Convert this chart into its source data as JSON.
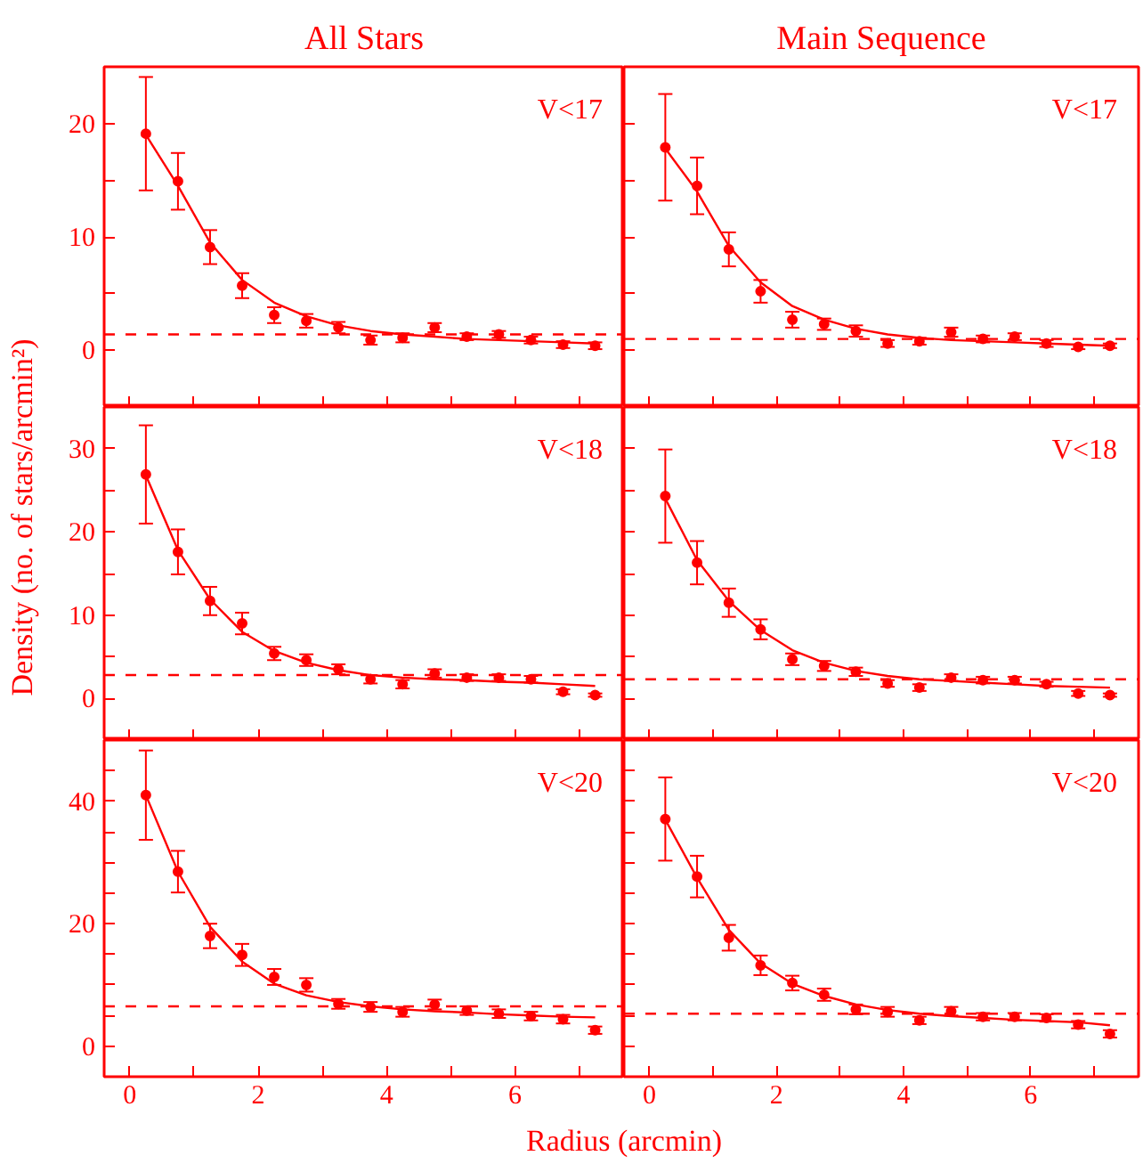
{
  "chart_data": [
    {
      "type": "scatter",
      "title": "All Stars",
      "annotations": [
        "V<17"
      ],
      "xlim": [
        -0.4,
        7.7
      ],
      "ylim": [
        -5,
        25
      ],
      "xticks": [
        0,
        {
          "value": 1,
          "label": null
        },
        2,
        {
          "value": 3,
          "label": null
        },
        4,
        {
          "value": 5,
          "label": null
        },
        6,
        {
          "value": 7,
          "label": null
        }
      ],
      "yticks": [
        0,
        {
          "value": 5,
          "label": null
        },
        10,
        {
          "value": 15,
          "label": null
        },
        20
      ],
      "tick_labels": "y",
      "grid": false,
      "x": [
        0.25,
        0.75,
        1.25,
        1.75,
        2.25,
        2.75,
        3.25,
        3.75,
        4.25,
        4.75,
        5.25,
        5.75,
        6.25,
        6.75,
        7.25
      ],
      "ref_lines": [
        {
          "axis": "y",
          "value": 1.4,
          "color": "#ff0000",
          "line_style": "dashed"
        }
      ],
      "series": [
        {
          "marker": "circle",
          "color": "#ff0000",
          "values": [
            19.1,
            14.9,
            9.1,
            5.7,
            3.1,
            2.6,
            2.0,
            0.9,
            1.1,
            2.0,
            1.2,
            1.4,
            0.9,
            0.5,
            0.4
          ],
          "errors": [
            5,
            2.5,
            1.5,
            1.1,
            0.7,
            0.6,
            0.5,
            0.4,
            0.4,
            0.4,
            0.3,
            0.3,
            0.3,
            0.3,
            0.3
          ]
        },
        {
          "type": "line",
          "marker": "none",
          "color": "#ff0000",
          "values": [
            19.0,
            14.5,
            9.5,
            6.2,
            4.2,
            3.0,
            2.2,
            1.7,
            1.4,
            1.2,
            1.0,
            0.9,
            0.8,
            0.7,
            0.6
          ]
        }
      ]
    },
    {
      "type": "scatter",
      "title": "Main Sequence",
      "annotations": [
        "V<17"
      ],
      "xlim": [
        -0.4,
        7.7
      ],
      "ylim": [
        -5,
        25
      ],
      "xticks": [
        0,
        {
          "value": 1,
          "label": null
        },
        2,
        {
          "value": 3,
          "label": null
        },
        4,
        {
          "value": 5,
          "label": null
        },
        6,
        {
          "value": 7,
          "label": null
        }
      ],
      "yticks": [
        0,
        {
          "value": 5,
          "label": null
        },
        10,
        {
          "value": 15,
          "label": null
        },
        20
      ],
      "tick_labels": false,
      "grid": false,
      "x": [
        0.25,
        0.75,
        1.25,
        1.75,
        2.25,
        2.75,
        3.25,
        3.75,
        4.25,
        4.75,
        5.25,
        5.75,
        6.25,
        6.75,
        7.25
      ],
      "ref_lines": [
        {
          "axis": "y",
          "value": 1.0,
          "color": "#ff0000",
          "line_style": "dashed"
        }
      ],
      "series": [
        {
          "marker": "circle",
          "color": "#ff0000",
          "values": [
            17.9,
            14.5,
            8.9,
            5.2,
            2.7,
            2.3,
            1.7,
            0.6,
            0.8,
            1.6,
            1.0,
            1.2,
            0.6,
            0.3,
            0.4
          ],
          "errors": [
            4.7,
            2.5,
            1.5,
            1.0,
            0.7,
            0.5,
            0.5,
            0.3,
            0.3,
            0.4,
            0.3,
            0.3,
            0.3,
            0.2,
            0.2
          ]
        },
        {
          "type": "line",
          "marker": "none",
          "color": "#ff0000",
          "values": [
            17.8,
            14.0,
            9.2,
            6.0,
            3.9,
            2.7,
            1.9,
            1.4,
            1.1,
            0.9,
            0.8,
            0.7,
            0.6,
            0.5,
            0.4
          ]
        }
      ]
    },
    {
      "type": "scatter",
      "ylabel": "Density (no. of stars/arcmin²)",
      "annotations": [
        "V<18"
      ],
      "xlim": [
        -0.4,
        7.7
      ],
      "ylim": [
        -5,
        35
      ],
      "xticks": [
        0,
        {
          "value": 1,
          "label": null
        },
        2,
        {
          "value": 3,
          "label": null
        },
        4,
        {
          "value": 5,
          "label": null
        },
        6,
        {
          "value": 7,
          "label": null
        }
      ],
      "yticks": [
        0,
        {
          "value": 5,
          "label": null
        },
        10,
        {
          "value": 15,
          "label": null
        },
        20,
        {
          "value": 25,
          "label": null
        },
        30
      ],
      "tick_labels": "y",
      "grid": false,
      "x": [
        0.25,
        0.75,
        1.25,
        1.75,
        2.25,
        2.75,
        3.25,
        3.75,
        4.25,
        4.75,
        5.25,
        5.75,
        6.25,
        6.75,
        7.25
      ],
      "ref_lines": [
        {
          "axis": "y",
          "value": 2.8,
          "color": "#ff0000",
          "line_style": "dashed"
        }
      ],
      "series": [
        {
          "marker": "circle",
          "color": "#ff0000",
          "values": [
            26.9,
            17.6,
            11.7,
            9.0,
            5.4,
            4.6,
            3.5,
            2.3,
            1.7,
            3.0,
            2.5,
            2.5,
            2.3,
            0.8,
            0.4
          ],
          "errors": [
            5.9,
            2.7,
            1.7,
            1.3,
            0.8,
            0.7,
            0.6,
            0.5,
            0.5,
            0.5,
            0.4,
            0.4,
            0.4,
            0.3,
            0.2
          ]
        },
        {
          "type": "line",
          "marker": "none",
          "color": "#ff0000",
          "values": [
            26.8,
            17.8,
            11.9,
            8.0,
            5.7,
            4.3,
            3.4,
            2.8,
            2.5,
            2.3,
            2.2,
            2.0,
            1.9,
            1.7,
            1.5
          ]
        }
      ]
    },
    {
      "type": "scatter",
      "annotations": [
        "V<18"
      ],
      "xlim": [
        -0.4,
        7.7
      ],
      "ylim": [
        -5,
        35
      ],
      "xticks": [
        0,
        {
          "value": 1,
          "label": null
        },
        2,
        {
          "value": 3,
          "label": null
        },
        4,
        {
          "value": 5,
          "label": null
        },
        6,
        {
          "value": 7,
          "label": null
        }
      ],
      "yticks": [
        0,
        {
          "value": 5,
          "label": null
        },
        10,
        {
          "value": 15,
          "label": null
        },
        20,
        {
          "value": 25,
          "label": null
        },
        30
      ],
      "tick_labels": false,
      "grid": false,
      "x": [
        0.25,
        0.75,
        1.25,
        1.75,
        2.25,
        2.75,
        3.25,
        3.75,
        4.25,
        4.75,
        5.25,
        5.75,
        6.25,
        6.75,
        7.25
      ],
      "ref_lines": [
        {
          "axis": "y",
          "value": 2.3,
          "color": "#ff0000",
          "line_style": "dashed"
        }
      ],
      "series": [
        {
          "marker": "circle",
          "color": "#ff0000",
          "values": [
            24.3,
            16.3,
            11.5,
            8.3,
            4.7,
            3.9,
            3.2,
            1.8,
            1.3,
            2.5,
            2.2,
            2.2,
            1.7,
            0.6,
            0.4
          ],
          "errors": [
            5.6,
            2.6,
            1.7,
            1.2,
            0.7,
            0.6,
            0.5,
            0.4,
            0.4,
            0.4,
            0.4,
            0.4,
            0.3,
            0.3,
            0.2
          ]
        },
        {
          "type": "line",
          "marker": "none",
          "color": "#ff0000",
          "values": [
            24.0,
            16.6,
            11.7,
            8.2,
            5.8,
            4.3,
            3.3,
            2.7,
            2.3,
            2.1,
            1.9,
            1.7,
            1.5,
            1.4,
            1.3
          ]
        }
      ]
    },
    {
      "type": "scatter",
      "xlabel": "Radius (arcmin)",
      "annotations": [
        "V<20"
      ],
      "xlim": [
        -0.4,
        7.7
      ],
      "ylim": [
        -5,
        50
      ],
      "xticks": [
        0,
        {
          "value": 1,
          "label": null
        },
        2,
        {
          "value": 3,
          "label": null
        },
        4,
        {
          "value": 5,
          "label": null
        },
        6,
        {
          "value": 7,
          "label": null
        }
      ],
      "yticks": [
        0,
        {
          "value": 5,
          "label": null
        },
        {
          "value": 10,
          "label": null
        },
        {
          "value": 15,
          "label": null
        },
        20,
        {
          "value": 25,
          "label": null
        },
        {
          "value": 30,
          "label": null
        },
        {
          "value": 35,
          "label": null
        },
        40,
        {
          "value": 45,
          "label": null
        }
      ],
      "grid": false,
      "x": [
        0.25,
        0.75,
        1.25,
        1.75,
        2.25,
        2.75,
        3.25,
        3.75,
        4.25,
        4.75,
        5.25,
        5.75,
        6.25,
        6.75,
        7.25
      ],
      "ref_lines": [
        {
          "axis": "y",
          "value": 6.5,
          "color": "#ff0000",
          "line_style": "dashed"
        }
      ],
      "series": [
        {
          "marker": "circle",
          "color": "#ff0000",
          "values": [
            41.0,
            28.5,
            18.0,
            14.9,
            11.3,
            10.0,
            6.9,
            6.4,
            5.6,
            6.8,
            5.8,
            5.3,
            4.9,
            4.4,
            2.6
          ],
          "errors": [
            7.3,
            3.4,
            2.0,
            1.8,
            1.3,
            1.1,
            0.8,
            0.8,
            0.8,
            0.8,
            0.7,
            0.7,
            0.7,
            0.7,
            0.6
          ]
        },
        {
          "type": "line",
          "marker": "none",
          "color": "#ff0000",
          "values": [
            41.0,
            28.5,
            19.5,
            13.8,
            10.2,
            8.3,
            7.2,
            6.5,
            6.0,
            5.7,
            5.5,
            5.2,
            5.0,
            4.8,
            4.7
          ]
        }
      ]
    },
    {
      "type": "scatter",
      "annotations": [
        "V<20"
      ],
      "xlim": [
        -0.4,
        7.7
      ],
      "ylim": [
        -5,
        50
      ],
      "xticks": [
        0,
        {
          "value": 1,
          "label": null
        },
        2,
        {
          "value": 3,
          "label": null
        },
        4,
        {
          "value": 5,
          "label": null
        },
        6,
        {
          "value": 7,
          "label": null
        }
      ],
      "yticks": [
        0,
        {
          "value": 5,
          "label": null
        },
        {
          "value": 10,
          "label": null
        },
        {
          "value": 15,
          "label": null
        },
        {
          "value": 20,
          "label": null
        },
        {
          "value": 25,
          "label": null
        },
        {
          "value": 30,
          "label": null
        },
        {
          "value": 35,
          "label": null
        },
        {
          "value": 40,
          "label": null
        },
        {
          "value": 45,
          "label": null
        }
      ],
      "tick_labels": "x",
      "grid": false,
      "x": [
        0.25,
        0.75,
        1.25,
        1.75,
        2.25,
        2.75,
        3.25,
        3.75,
        4.25,
        4.75,
        5.25,
        5.75,
        6.25,
        6.75,
        7.25
      ],
      "ref_lines": [
        {
          "axis": "y",
          "value": 5.3,
          "color": "#ff0000",
          "line_style": "dashed"
        }
      ],
      "series": [
        {
          "marker": "circle",
          "color": "#ff0000",
          "values": [
            37.1,
            27.7,
            17.7,
            13.2,
            10.3,
            8.4,
            6.0,
            5.6,
            4.2,
            5.7,
            4.8,
            4.8,
            4.6,
            3.5,
            2.0
          ],
          "errors": [
            6.8,
            3.4,
            2.1,
            1.6,
            1.2,
            1.0,
            0.8,
            0.8,
            0.6,
            0.7,
            0.6,
            0.6,
            0.6,
            0.6,
            0.6
          ]
        },
        {
          "type": "line",
          "marker": "none",
          "color": "#ff0000",
          "values": [
            37.0,
            27.5,
            19.0,
            13.5,
            10.2,
            8.2,
            6.8,
            5.9,
            5.3,
            4.9,
            4.6,
            4.3,
            4.1,
            3.9,
            3.4
          ]
        }
      ]
    }
  ]
}
